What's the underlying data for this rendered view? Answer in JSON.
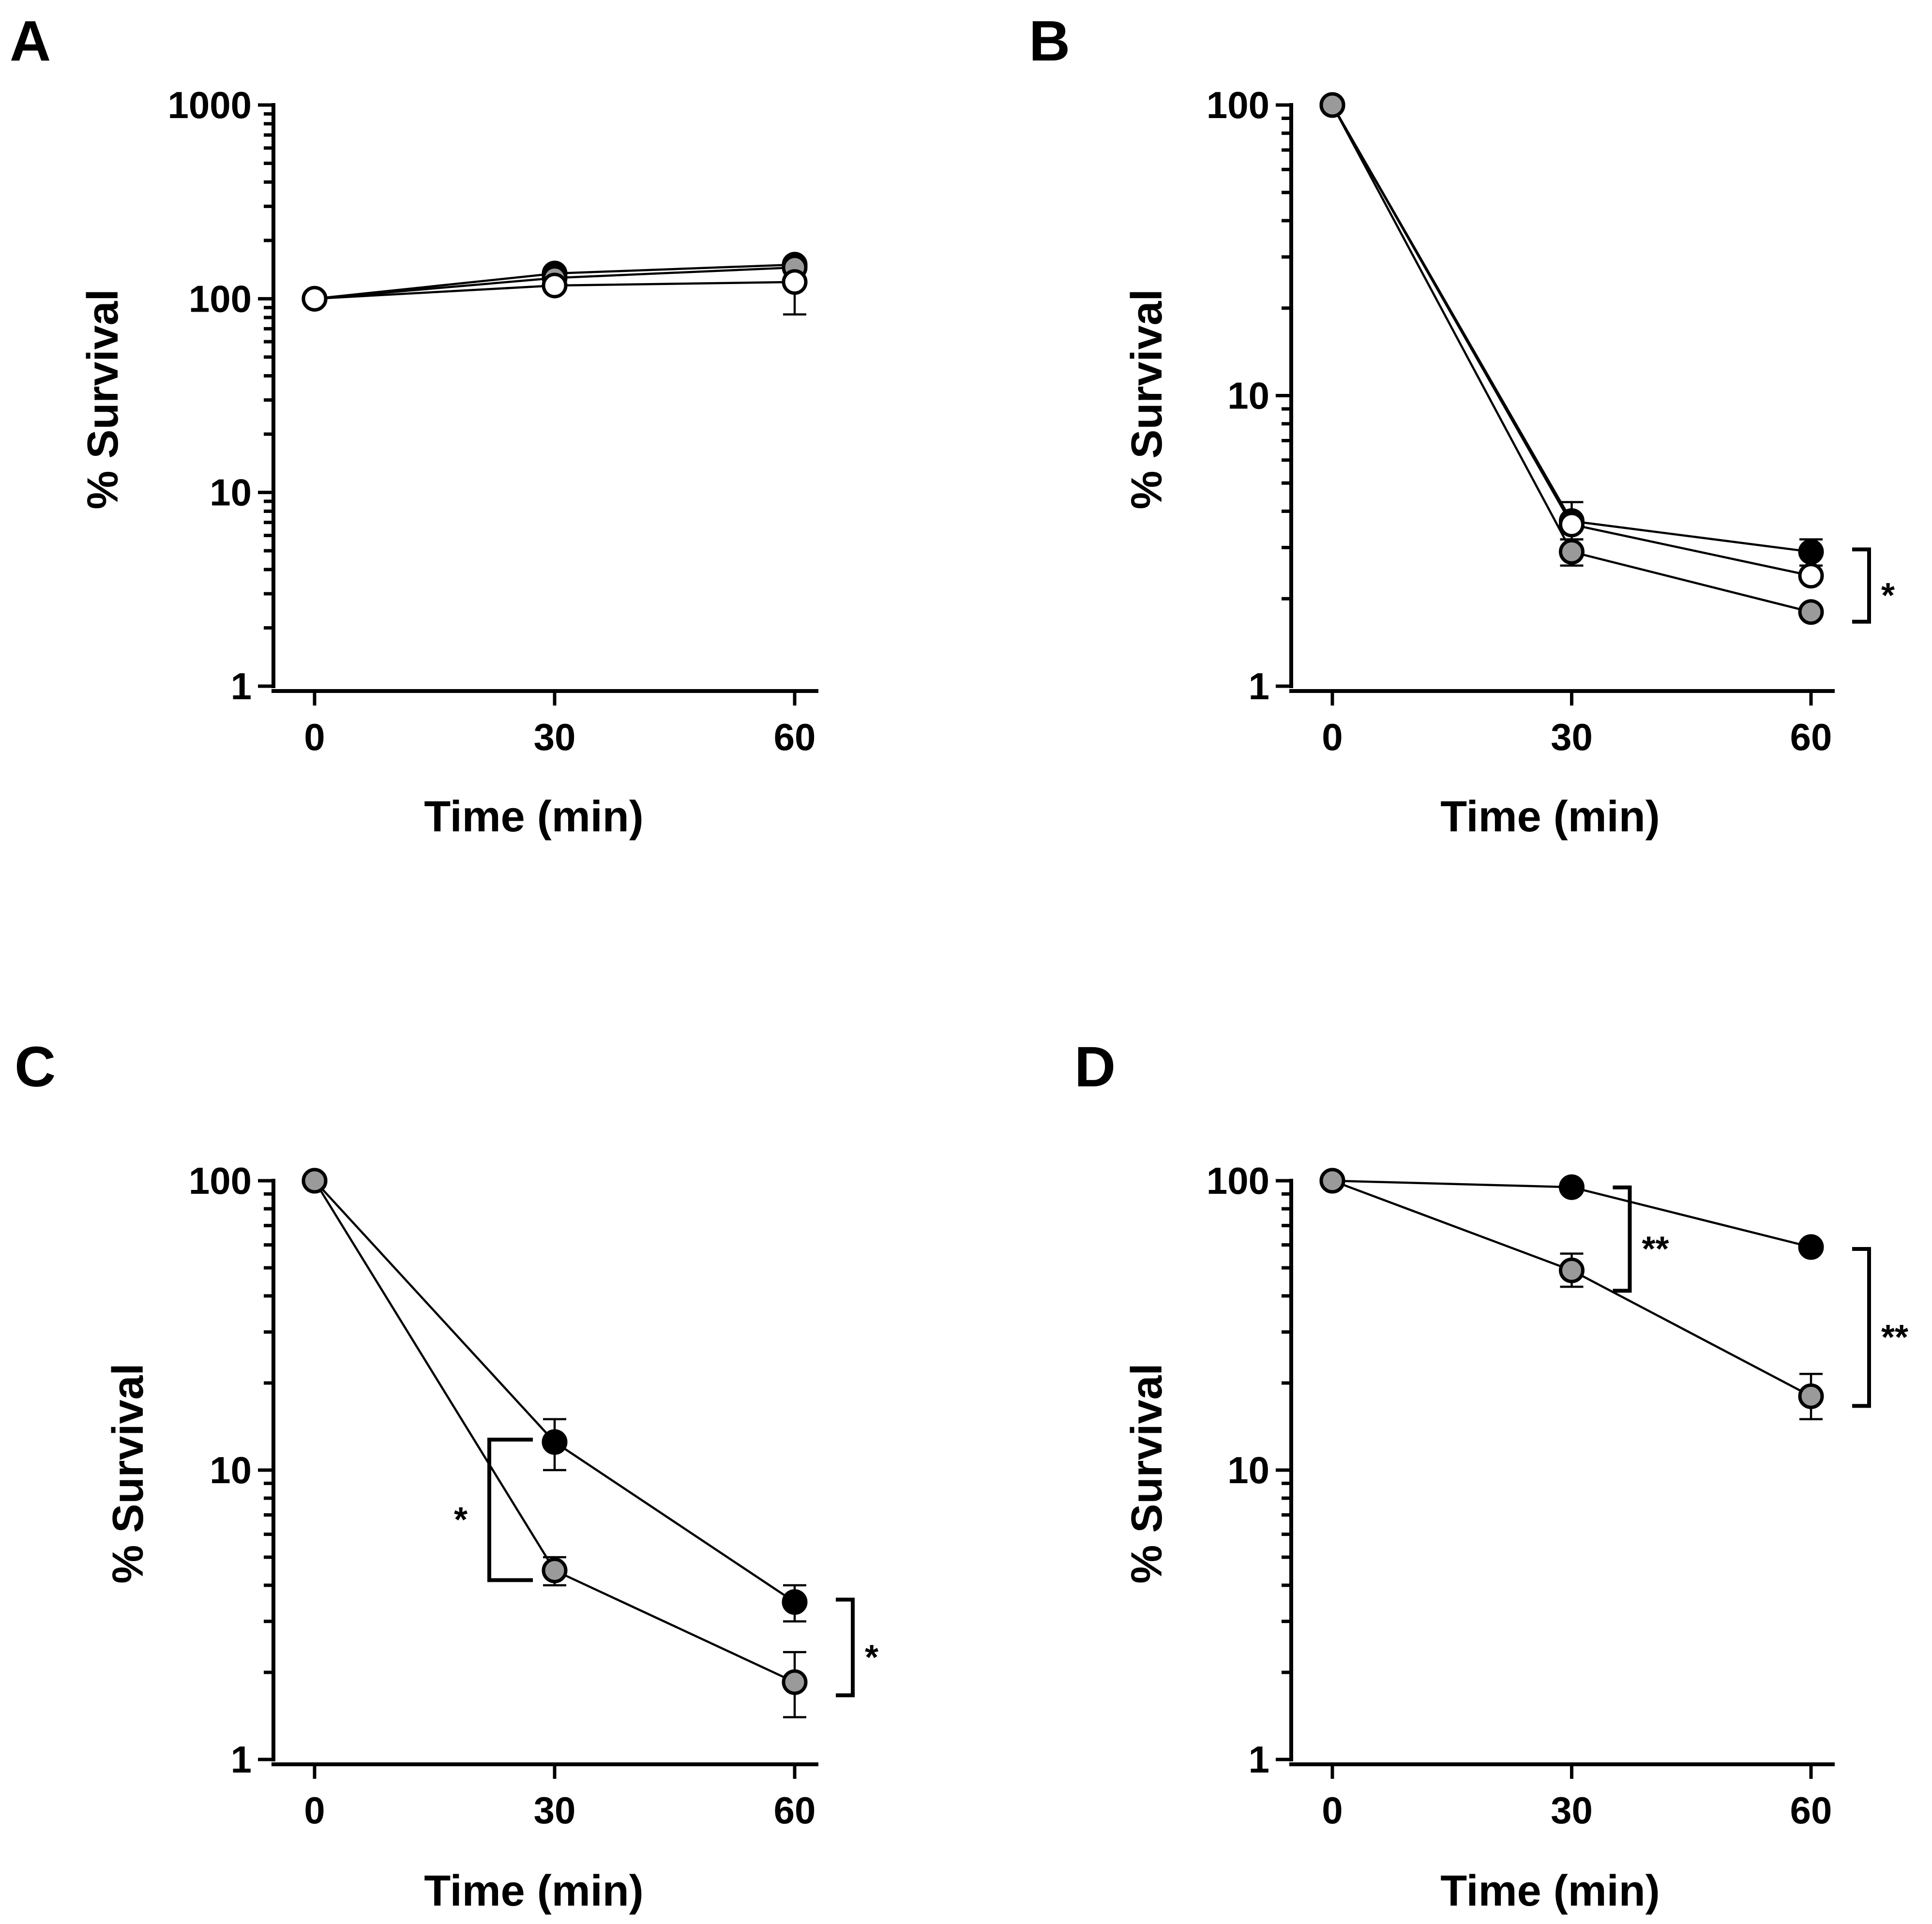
{
  "figure": {
    "panels": [
      {
        "letter": "A",
        "xlabel": "Time (min)",
        "ylabel": "% Survival"
      },
      {
        "letter": "B",
        "xlabel": "Time (min)",
        "ylabel": "% Survival"
      },
      {
        "letter": "C",
        "xlabel": "Time (min)",
        "ylabel": "% Survival"
      },
      {
        "letter": "D",
        "xlabel": "Time (min)",
        "ylabel": "% Survival"
      }
    ],
    "colors": {
      "black": "#000000",
      "white": "#ffffff",
      "grey": "#9a9a9a"
    }
  },
  "chart_data": [
    {
      "type": "line",
      "panel": "A",
      "title": "",
      "xlabel": "Time (min)",
      "ylabel": "% Survival",
      "yscale": "log",
      "x": [
        0,
        30,
        60
      ],
      "x_tick_labels": [
        "0",
        "30",
        "60"
      ],
      "ylim": [
        1,
        1000
      ],
      "y_tick_values": [
        1,
        10,
        100,
        1000
      ],
      "y_tick_labels": [
        "1",
        "10",
        "100",
        "1000"
      ],
      "series": [
        {
          "name": "black",
          "fill": "black",
          "values": [
            100,
            135,
            150
          ],
          "err_upper": [
            null,
            null,
            null
          ],
          "err_lower": [
            null,
            null,
            null
          ]
        },
        {
          "name": "grey",
          "fill": "grey",
          "values": [
            100,
            128,
            145
          ],
          "err_upper": [
            null,
            null,
            null
          ],
          "err_lower": [
            null,
            null,
            null
          ]
        },
        {
          "name": "white",
          "fill": "white",
          "values": [
            100,
            117,
            122
          ],
          "err_upper": [
            null,
            null,
            140
          ],
          "err_lower": [
            null,
            null,
            83
          ]
        }
      ],
      "significance": []
    },
    {
      "type": "line",
      "panel": "B",
      "title": "",
      "xlabel": "Time (min)",
      "ylabel": "% Survival",
      "yscale": "log",
      "x": [
        0,
        30,
        60
      ],
      "x_tick_labels": [
        "0",
        "30",
        "60"
      ],
      "ylim": [
        1,
        100
      ],
      "y_tick_values": [
        1,
        10,
        100
      ],
      "y_tick_labels": [
        "1",
        "10",
        "100"
      ],
      "series": [
        {
          "name": "black",
          "fill": "black",
          "values": [
            100,
            3.7,
            2.9
          ],
          "err_upper": [
            null,
            4.3,
            3.2
          ],
          "err_lower": [
            null,
            3.2,
            2.6
          ]
        },
        {
          "name": "white",
          "fill": "white",
          "values": [
            100,
            3.6,
            2.4
          ],
          "err_upper": [
            null,
            null,
            null
          ],
          "err_lower": [
            null,
            null,
            null
          ]
        },
        {
          "name": "grey",
          "fill": "grey",
          "values": [
            100,
            2.9,
            1.8
          ],
          "err_upper": [
            null,
            3.2,
            null
          ],
          "err_lower": [
            null,
            2.6,
            null
          ]
        }
      ],
      "significance": [
        {
          "label": "*",
          "x": 60,
          "y_top": 2.9,
          "y_bottom": 1.8
        }
      ]
    },
    {
      "type": "line",
      "panel": "C",
      "title": "",
      "xlabel": "Time (min)",
      "ylabel": "% Survival",
      "yscale": "log",
      "x": [
        0,
        30,
        60
      ],
      "x_tick_labels": [
        "0",
        "30",
        "60"
      ],
      "ylim": [
        1,
        100
      ],
      "y_tick_values": [
        1,
        10,
        100
      ],
      "y_tick_labels": [
        "1",
        "10",
        "100"
      ],
      "series": [
        {
          "name": "black",
          "fill": "black",
          "values": [
            100,
            12.5,
            3.5
          ],
          "err_upper": [
            null,
            15,
            4
          ],
          "err_lower": [
            null,
            10,
            3
          ]
        },
        {
          "name": "grey",
          "fill": "grey",
          "values": [
            100,
            4.5,
            1.85
          ],
          "err_upper": [
            null,
            5,
            2.35
          ],
          "err_lower": [
            null,
            4,
            1.4
          ]
        }
      ],
      "significance": [
        {
          "label": "*",
          "x": 30,
          "side": "left",
          "y_top": 12.5,
          "y_bottom": 4.5
        },
        {
          "label": "*",
          "x": 60,
          "side": "right",
          "y_top": 3.5,
          "y_bottom": 1.8
        }
      ]
    },
    {
      "type": "line",
      "panel": "D",
      "title": "",
      "xlabel": "Time (min)",
      "ylabel": "% Survival",
      "yscale": "log",
      "x": [
        0,
        30,
        60
      ],
      "x_tick_labels": [
        "0",
        "30",
        "60"
      ],
      "ylim": [
        1,
        100
      ],
      "y_tick_values": [
        1,
        10,
        100
      ],
      "y_tick_labels": [
        "1",
        "10",
        "100"
      ],
      "series": [
        {
          "name": "black",
          "fill": "black",
          "values": [
            100,
            95,
            59
          ],
          "err_upper": [
            null,
            null,
            null
          ],
          "err_lower": [
            null,
            null,
            null
          ]
        },
        {
          "name": "grey",
          "fill": "grey",
          "values": [
            100,
            49,
            18
          ],
          "err_upper": [
            null,
            56,
            21.5
          ],
          "err_lower": [
            null,
            43,
            15
          ]
        }
      ],
      "significance": [
        {
          "label": "**",
          "x": 30,
          "side": "right",
          "y_top": 93,
          "y_bottom": 45
        },
        {
          "label": "**",
          "x": 60,
          "side": "right",
          "y_top": 57,
          "y_bottom": 18
        }
      ]
    }
  ]
}
